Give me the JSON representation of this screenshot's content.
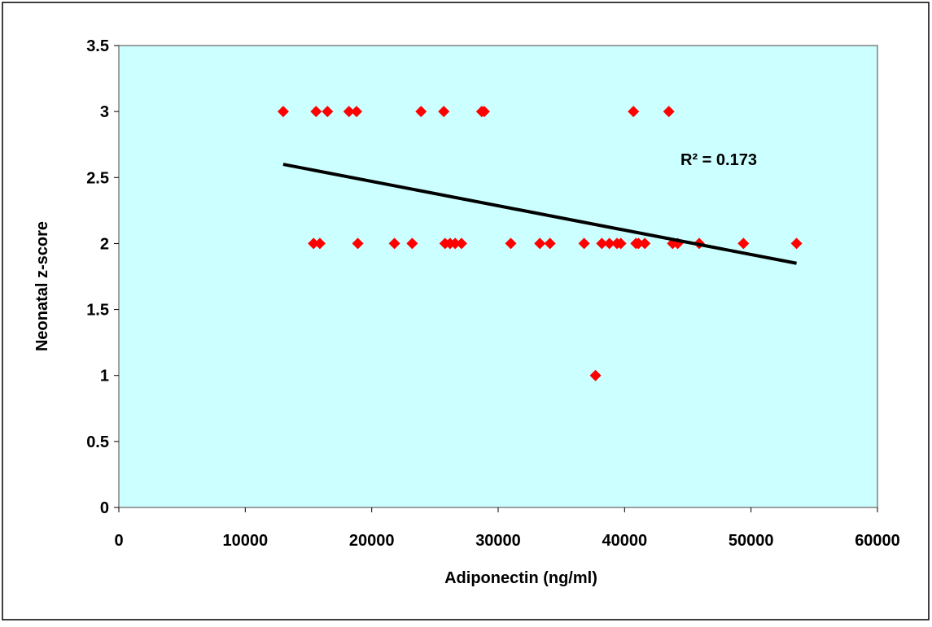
{
  "chart_data": {
    "type": "scatter",
    "title": "",
    "xlabel": "Adiponectin (ng/ml)",
    "ylabel": "Neonatal z-score",
    "xlim": [
      0,
      60000
    ],
    "ylim": [
      0,
      3.5
    ],
    "xticks": [
      "0",
      "10000",
      "20000",
      "30000",
      "40000",
      "50000",
      "60000"
    ],
    "yticks": [
      "0",
      "0.5",
      "1",
      "1.5",
      "2",
      "2.5",
      "3",
      "3.5"
    ],
    "grid": false,
    "legend": "none",
    "plot_background": "#ccffff",
    "marker_color": "#ff0000",
    "trendline_color": "#000000",
    "series": [
      {
        "x": [
          13000,
          15600,
          16500,
          18200,
          18800,
          23900,
          25700,
          28700,
          28900,
          40700,
          43500,
          15400,
          15900,
          18900,
          21800,
          23200,
          25800,
          26200,
          26600,
          27100,
          31000,
          33300,
          34100,
          36800,
          38200,
          38800,
          39400,
          39700,
          40900,
          41100,
          41600,
          43800,
          44200,
          45900,
          49400,
          53600,
          37700
        ],
        "y": [
          3,
          3,
          3,
          3,
          3,
          3,
          3,
          3,
          3,
          3,
          3,
          2,
          2,
          2,
          2,
          2,
          2,
          2,
          2,
          2,
          2,
          2,
          2,
          2,
          2,
          2,
          2,
          2,
          2,
          2,
          2,
          2,
          2,
          2,
          2,
          2,
          1
        ]
      }
    ],
    "trendline": {
      "x": [
        13000,
        53600
      ],
      "y": [
        2.6,
        1.85
      ]
    },
    "annotation": "R² = 0.173"
  }
}
